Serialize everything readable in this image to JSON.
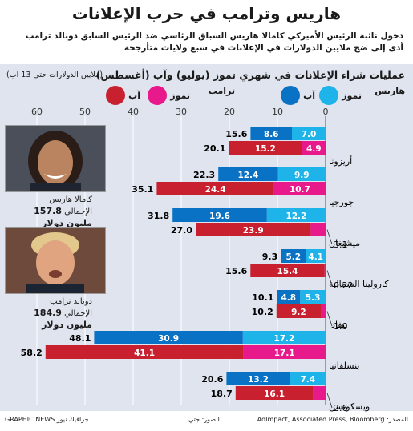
{
  "title": "هاريس وترامب في حرب الإعلانات",
  "subtitle": "دخول نائبة الرئيس الأميركي كامالا هاريس السباق الرئاسي ضد الرئيس السابق دونالد ترامب أدى إلى ضخ ملايين الدولارات في الإعلانات في سبع ولايات متأرجحة",
  "panel": {
    "title": "عمليات شراء الإعلانات في شهري تموز (يوليو) وآب (أغسطس)",
    "note": "(ملايين الدولارات حتى 13 آب)"
  },
  "legend": {
    "harris": "هاريس",
    "trump": "ترامب",
    "july": "تموز",
    "august": "آب"
  },
  "colors": {
    "harris_july": "#1eb4ea",
    "harris_aug": "#0a72c4",
    "trump_july": "#e8198b",
    "trump_aug": "#c8202f",
    "panel_bg": "#dfe4ee"
  },
  "people": {
    "harris": {
      "name": "كامالا هاريس",
      "total_label": "الإجمالي",
      "total": "157.8 مليون دولار"
    },
    "trump": {
      "name": "دونالد ترامب",
      "total_label": "الإجمالي",
      "total": "184.9 مليون دولار"
    }
  },
  "footer": {
    "source": "المصدر: AdImpact, Associated Press, Bloomberg",
    "photos": "الصور: جتي",
    "credit": "جرافيك نيوز GRAPHIC NEWS"
  },
  "chart_data": {
    "type": "bar",
    "orientation": "horizontal",
    "xlim": [
      0,
      60
    ],
    "ticks": [
      0,
      10,
      20,
      30,
      40,
      50,
      60
    ],
    "categories": [
      "أريزونا",
      "جورجيا",
      "ميشيغان",
      "كارولينا الشمالية",
      "نيفادا",
      "بنسلفانيا",
      "ويسكونسن"
    ],
    "series": [
      {
        "name": "هاريس تموز",
        "values": [
          7.0,
          9.9,
          12.2,
          4.1,
          5.3,
          17.2,
          7.4
        ]
      },
      {
        "name": "هاريس آب",
        "values": [
          8.6,
          12.4,
          19.6,
          5.2,
          4.8,
          30.9,
          13.2
        ]
      },
      {
        "name": "ترامب تموز",
        "values": [
          4.9,
          10.7,
          3.1,
          0.22,
          1.0,
          17.1,
          2.6
        ]
      },
      {
        "name": "ترامب آب",
        "values": [
          15.2,
          24.4,
          23.9,
          15.4,
          9.2,
          41.1,
          16.1
        ]
      }
    ],
    "harris_totals": [
      15.6,
      22.3,
      31.8,
      9.3,
      10.1,
      48.1,
      20.6
    ],
    "trump_totals": [
      20.1,
      35.1,
      27.0,
      15.6,
      10.2,
      58.2,
      18.7
    ],
    "external_labels": [
      "",
      "",
      "3.1",
      "0.22",
      "1.0",
      "",
      "2.6"
    ]
  }
}
